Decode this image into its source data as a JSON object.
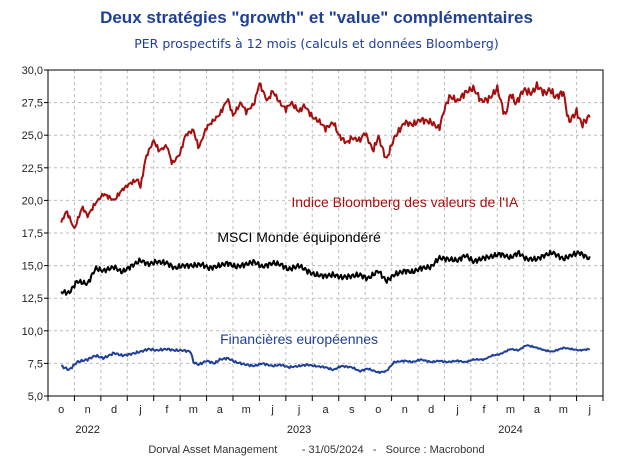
{
  "header": {
    "title": "Deux stratégies \"growth\" et \"value\" complémentaires",
    "subtitle": "PER prospectifs à 12 mois (calculs et données Bloomberg)"
  },
  "footer": {
    "text": "Dorval Asset Management        - 31/05/2024   -   Source : Macrobond"
  },
  "chart_data": {
    "type": "line",
    "title": "Deux stratégies \"growth\" et \"value\" complémentaires",
    "subtitle": "PER prospectifs à 12 mois (calculs et données Bloomberg)",
    "xlabel": "",
    "ylabel": "",
    "ylim": [
      5,
      30
    ],
    "yticks": [
      "30,0",
      "27,5",
      "25,0",
      "22,5",
      "20,0",
      "17,5",
      "15,0",
      "12,5",
      "10,0",
      "7,5",
      "5,0"
    ],
    "ytick_values": [
      30,
      27.5,
      25,
      22.5,
      20,
      17.5,
      15,
      12.5,
      10,
      7.5,
      5
    ],
    "grid": true,
    "x_month_labels": [
      "o",
      "n",
      "d",
      "j",
      "f",
      "m",
      "a",
      "m",
      "j",
      "j",
      "a",
      "s",
      "o",
      "n",
      "d",
      "j",
      "f",
      "m",
      "a",
      "m",
      "j"
    ],
    "x_years": [
      {
        "label": "2022",
        "month_index": 1
      },
      {
        "label": "2023",
        "month_index": 9
      },
      {
        "label": "2024",
        "month_index": 17
      }
    ],
    "x_range_months": [
      0,
      20
    ],
    "series": [
      {
        "name": "Indice Bloomberg des valeurs de l'IA",
        "color": "#a50e0e",
        "t": [
          0,
          0.2,
          0.5,
          0.8,
          1.0,
          1.3,
          1.6,
          2.0,
          2.3,
          2.6,
          2.9,
          3.0,
          3.2,
          3.5,
          3.7,
          4.0,
          4.2,
          4.5,
          4.7,
          5.0,
          5.2,
          5.5,
          5.7,
          6.0,
          6.3,
          6.5,
          6.8,
          7.0,
          7.3,
          7.5,
          7.8,
          8.0,
          8.3,
          8.5,
          8.7,
          9.0,
          9.2,
          9.5,
          9.8,
          10.0,
          10.3,
          10.5,
          10.8,
          11.0,
          11.3,
          11.5,
          11.8,
          12.0,
          12.3,
          12.6,
          13.0,
          13.3,
          13.6,
          14.0,
          14.3,
          14.5,
          14.7,
          15.0,
          15.3,
          15.6,
          15.9,
          16.2,
          16.5,
          16.8,
          17.0,
          17.2,
          17.5,
          17.8,
          18.0,
          18.3,
          18.5,
          18.7,
          19.0,
          19.2,
          19.5,
          19.7,
          20.0
        ],
        "values": [
          18.3,
          19.2,
          17.8,
          19.5,
          18.8,
          19.8,
          20.5,
          20.0,
          20.8,
          21.3,
          21.6,
          21.0,
          23.3,
          24.6,
          23.8,
          24.2,
          22.8,
          23.6,
          25.0,
          25.4,
          24.0,
          25.6,
          26.0,
          26.6,
          27.8,
          26.5,
          27.5,
          26.8,
          27.4,
          29.0,
          27.6,
          28.4,
          27.4,
          27.0,
          27.5,
          26.8,
          27.3,
          26.4,
          26.0,
          25.5,
          26.0,
          25.0,
          24.4,
          24.8,
          24.6,
          25.2,
          23.8,
          24.9,
          23.1,
          24.8,
          26.0,
          25.8,
          26.2,
          26.0,
          25.5,
          27.0,
          28.0,
          27.6,
          28.3,
          28.6,
          27.6,
          27.8,
          28.6,
          26.4,
          28.2,
          27.4,
          28.5,
          28.2,
          28.8,
          28.2,
          28.5,
          27.9,
          28.3,
          26.0,
          26.8,
          25.8,
          26.5
        ]
      },
      {
        "name": "MSCI Monde équipondéré",
        "color": "#000000",
        "t": [
          0,
          0.3,
          0.6,
          1.0,
          1.3,
          1.6,
          2.0,
          2.3,
          2.6,
          3.0,
          3.3,
          3.6,
          4.0,
          4.3,
          4.6,
          5.0,
          5.3,
          5.6,
          6.0,
          6.3,
          6.6,
          7.0,
          7.3,
          7.6,
          8.0,
          8.3,
          8.6,
          9.0,
          9.3,
          9.6,
          10.0,
          10.3,
          10.6,
          11.0,
          11.3,
          11.6,
          12.0,
          12.3,
          12.6,
          13.0,
          13.3,
          13.6,
          14.0,
          14.3,
          14.6,
          15.0,
          15.3,
          15.6,
          16.0,
          16.3,
          16.6,
          17.0,
          17.3,
          17.6,
          18.0,
          18.3,
          18.6,
          19.0,
          19.3,
          19.6,
          20.0
        ],
        "values": [
          13.0,
          12.9,
          13.8,
          13.6,
          14.8,
          14.6,
          14.9,
          14.5,
          14.9,
          15.4,
          15.1,
          15.3,
          15.2,
          14.8,
          15.0,
          15.0,
          15.1,
          14.8,
          15.0,
          15.2,
          14.9,
          15.1,
          15.3,
          14.9,
          15.2,
          15.1,
          14.7,
          15.0,
          14.6,
          14.3,
          14.2,
          14.3,
          14.1,
          14.2,
          14.3,
          14.0,
          14.6,
          13.8,
          14.3,
          14.6,
          14.5,
          14.8,
          14.9,
          15.6,
          15.5,
          15.4,
          15.8,
          15.3,
          15.6,
          15.7,
          15.9,
          15.6,
          16.0,
          15.5,
          15.5,
          15.8,
          16.0,
          15.5,
          15.8,
          16.0,
          15.5
        ]
      },
      {
        "name": "Financières européennes",
        "color": "#1f3f99",
        "t": [
          0,
          0.3,
          0.6,
          1.0,
          1.3,
          1.6,
          2.0,
          2.3,
          2.6,
          3.0,
          3.3,
          3.6,
          4.0,
          4.3,
          4.6,
          4.9,
          5.0,
          5.2,
          5.5,
          5.8,
          6.0,
          6.3,
          6.6,
          7.0,
          7.3,
          7.6,
          8.0,
          8.3,
          8.6,
          9.0,
          9.3,
          9.6,
          10.0,
          10.3,
          10.6,
          11.0,
          11.3,
          11.6,
          12.0,
          12.3,
          12.6,
          13.0,
          13.3,
          13.6,
          14.0,
          14.3,
          14.6,
          15.0,
          15.3,
          15.6,
          16.0,
          16.3,
          16.6,
          17.0,
          17.3,
          17.6,
          18.0,
          18.3,
          18.6,
          19.0,
          19.3,
          19.6,
          20.0
        ],
        "values": [
          7.3,
          7.0,
          7.6,
          7.8,
          8.1,
          7.9,
          8.3,
          8.1,
          8.2,
          8.4,
          8.6,
          8.5,
          8.6,
          8.5,
          8.5,
          8.4,
          7.6,
          7.4,
          7.7,
          7.5,
          7.8,
          7.9,
          7.6,
          7.4,
          7.3,
          7.5,
          7.3,
          7.4,
          7.2,
          7.3,
          7.4,
          7.3,
          7.2,
          7.0,
          7.3,
          7.2,
          6.9,
          7.1,
          6.8,
          6.9,
          7.6,
          7.7,
          7.6,
          7.8,
          7.6,
          7.7,
          7.6,
          7.7,
          7.6,
          7.8,
          7.8,
          8.1,
          8.2,
          8.6,
          8.5,
          8.9,
          8.7,
          8.5,
          8.4,
          8.7,
          8.6,
          8.5,
          8.6
        ]
      }
    ],
    "annotations": [
      {
        "text": "Indice Bloomberg des valeurs de l'IA",
        "series": 0,
        "at_t": 13.0,
        "at_y": 19.5
      },
      {
        "text": "MSCI Monde équipondéré",
        "series": 1,
        "at_t": 9.0,
        "at_y": 16.8
      },
      {
        "text": "Financières européennes",
        "series": 2,
        "at_t": 9.0,
        "at_y": 9.0
      }
    ]
  }
}
